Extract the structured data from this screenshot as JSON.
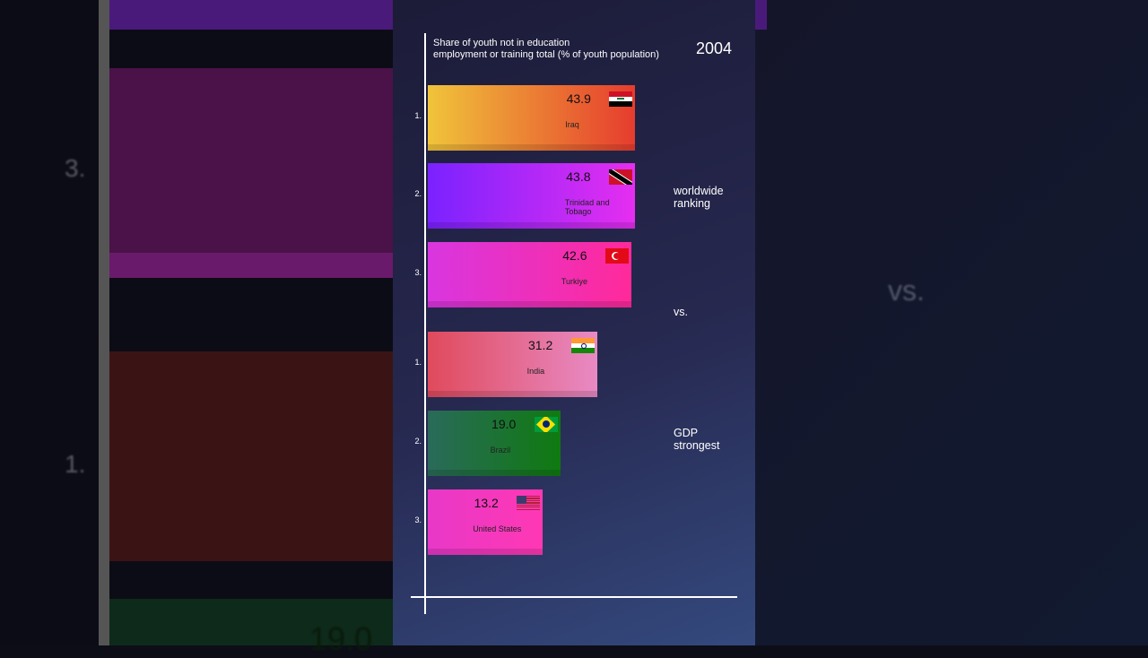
{
  "chart_data": {
    "type": "bar",
    "orientation": "horizontal",
    "title": [
      "Share of youth not in education",
      "employment or training  total (% of youth population)"
    ],
    "year": "2004",
    "group_labels": [
      [
        "worldwide",
        "ranking"
      ],
      [
        "vs."
      ],
      [
        "GDP",
        "strongest"
      ]
    ],
    "ranks": [
      "1.",
      "2.",
      "3.",
      "1.",
      "2.",
      "3."
    ],
    "categories": [
      "Iraq",
      "Trinidad and Tobago",
      "Turkiye",
      "India",
      "Brazil",
      "United States"
    ],
    "values": [
      43.9,
      43.8,
      42.6,
      31.2,
      19.0,
      13.2
    ],
    "value_labels": [
      "43.9",
      "43.8",
      "42.6",
      "31.2",
      "19.0",
      "13.2"
    ],
    "colors": [
      [
        "#f0c43a",
        "#e63c2e"
      ],
      [
        "#7a22ff",
        "#e52ef0"
      ],
      [
        "#d936e0",
        "#ff2a9a"
      ],
      [
        "#e04a5c",
        "#e88ac4"
      ],
      [
        "#2a6a5a",
        "#0f7a10"
      ],
      [
        "#e838c8",
        "#ff38b4"
      ]
    ],
    "xlim": [
      -25,
      77.5
    ]
  }
}
